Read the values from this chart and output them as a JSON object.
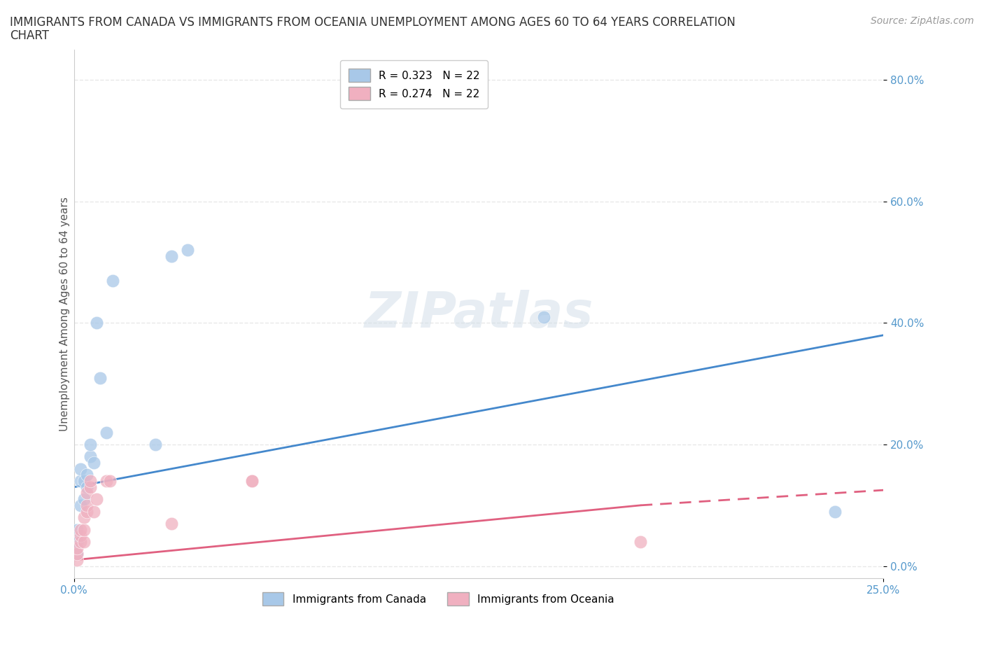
{
  "title_line1": "IMMIGRANTS FROM CANADA VS IMMIGRANTS FROM OCEANIA UNEMPLOYMENT AMONG AGES 60 TO 64 YEARS CORRELATION",
  "title_line2": "CHART",
  "source": "Source: ZipAtlas.com",
  "ylabel": "Unemployment Among Ages 60 to 64 years",
  "xlim": [
    0.0,
    0.25
  ],
  "ylim": [
    -0.02,
    0.85
  ],
  "yticks": [
    0.0,
    0.2,
    0.4,
    0.6,
    0.8
  ],
  "yticklabels": [
    "0.0%",
    "20.0%",
    "40.0%",
    "60.0%",
    "80.0%"
  ],
  "canada_color": "#a8c8e8",
  "oceania_color": "#f0b0c0",
  "canada_line_color": "#4488cc",
  "oceania_line_color": "#e06080",
  "background_color": "#ffffff",
  "grid_color": "#e8e8e8",
  "watermark_text": "ZIPatlas",
  "R_canada": 0.323,
  "N_canada": 22,
  "R_oceania": 0.274,
  "N_oceania": 22,
  "canada_x": [
    0.001,
    0.001,
    0.001,
    0.002,
    0.002,
    0.002,
    0.003,
    0.003,
    0.004,
    0.004,
    0.005,
    0.005,
    0.006,
    0.007,
    0.008,
    0.01,
    0.012,
    0.025,
    0.03,
    0.035,
    0.145,
    0.235
  ],
  "canada_y": [
    0.02,
    0.04,
    0.06,
    0.1,
    0.14,
    0.16,
    0.11,
    0.14,
    0.13,
    0.15,
    0.18,
    0.2,
    0.17,
    0.4,
    0.31,
    0.22,
    0.47,
    0.2,
    0.51,
    0.52,
    0.41,
    0.09
  ],
  "oceania_x": [
    0.001,
    0.001,
    0.001,
    0.002,
    0.002,
    0.002,
    0.003,
    0.003,
    0.003,
    0.004,
    0.004,
    0.004,
    0.005,
    0.005,
    0.006,
    0.007,
    0.01,
    0.011,
    0.03,
    0.055,
    0.055,
    0.175
  ],
  "oceania_y": [
    0.01,
    0.02,
    0.03,
    0.04,
    0.05,
    0.06,
    0.04,
    0.06,
    0.08,
    0.09,
    0.1,
    0.12,
    0.13,
    0.14,
    0.09,
    0.11,
    0.14,
    0.14,
    0.07,
    0.14,
    0.14,
    0.04
  ],
  "canada_trend": [
    0.0,
    0.25,
    0.13,
    0.38
  ],
  "oceania_trend_solid": [
    0.0,
    0.175,
    0.01,
    0.1
  ],
  "oceania_trend_dashed": [
    0.175,
    0.25,
    0.1,
    0.125
  ],
  "title_fontsize": 12,
  "axis_label_fontsize": 11,
  "tick_fontsize": 11,
  "legend_fontsize": 11,
  "source_fontsize": 10
}
